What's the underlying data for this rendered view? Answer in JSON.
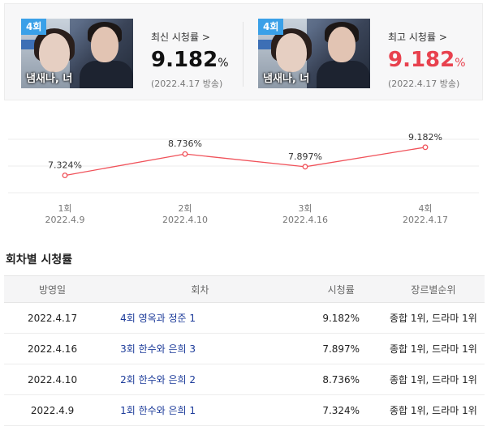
{
  "summary": {
    "latest": {
      "badge": "4회",
      "thumb_title": "냄새나, 너",
      "label": "최신 시청률 >",
      "value": "9.182",
      "unit": "%",
      "date": "(2022.4.17 방송)"
    },
    "highest": {
      "badge": "4회",
      "thumb_title": "냄새나, 너",
      "label": "최고 시청률 >",
      "value": "9.182",
      "unit": "%",
      "date": "(2022.4.17 방송)",
      "value_color": "#e8414e"
    }
  },
  "chart_data": {
    "type": "line",
    "categories": [
      "1회",
      "2회",
      "3회",
      "4회"
    ],
    "dates": [
      "2022.4.9",
      "2022.4.10",
      "2022.4.16",
      "2022.4.17"
    ],
    "series": [
      {
        "values": [
          7.324,
          8.736,
          7.897,
          9.182
        ],
        "labels": [
          "7.324%",
          "8.736%",
          "7.897%",
          "9.182%"
        ],
        "color": "#f0525a"
      }
    ],
    "ylim": [
      6.5,
      9.6
    ],
    "grid": true
  },
  "table": {
    "title": "회차별 시청률",
    "headers": [
      "방영일",
      "회차",
      "시청률",
      "장르별순위"
    ],
    "rows": [
      {
        "date": "2022.4.17",
        "episode": "4회 영옥과 정준 1",
        "rating": "9.182%",
        "rank": "종합 1위, 드라마 1위"
      },
      {
        "date": "2022.4.16",
        "episode": "3회 한수와 은희 3",
        "rating": "7.897%",
        "rank": "종합 1위, 드라마 1위"
      },
      {
        "date": "2022.4.10",
        "episode": "2회 한수와 은희 2",
        "rating": "8.736%",
        "rank": "종합 1위, 드라마 1위"
      },
      {
        "date": "2022.4.9",
        "episode": "1회 한수와 은희 1",
        "rating": "7.324%",
        "rank": "종합 1위, 드라마 1위"
      }
    ]
  }
}
